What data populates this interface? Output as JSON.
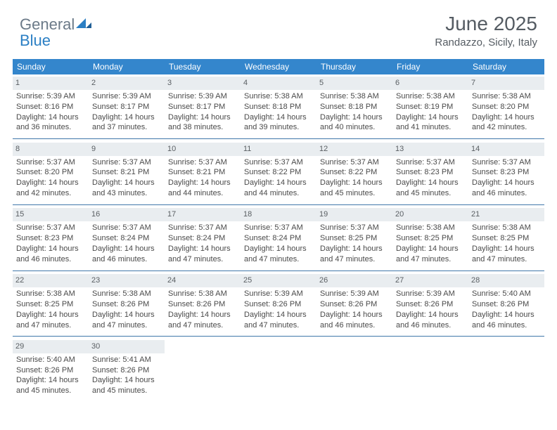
{
  "brand": {
    "part1": "General",
    "part2": "Blue"
  },
  "header": {
    "title": "June 2025",
    "location": "Randazzo, Sicily, Italy"
  },
  "colors": {
    "header_bg": "#3486cc",
    "header_text": "#ffffff",
    "daynum_bg": "#e9edf0",
    "rule": "#3f77aa",
    "text": "#4a4a4a",
    "title": "#555c63",
    "logo_gray": "#6b7a88",
    "logo_blue": "#2b7fc4"
  },
  "weekdays": [
    "Sunday",
    "Monday",
    "Tuesday",
    "Wednesday",
    "Thursday",
    "Friday",
    "Saturday"
  ],
  "days": [
    {
      "n": 1,
      "sr": "5:39 AM",
      "ss": "8:16 PM",
      "dl": "14 hours and 36 minutes."
    },
    {
      "n": 2,
      "sr": "5:39 AM",
      "ss": "8:17 PM",
      "dl": "14 hours and 37 minutes."
    },
    {
      "n": 3,
      "sr": "5:39 AM",
      "ss": "8:17 PM",
      "dl": "14 hours and 38 minutes."
    },
    {
      "n": 4,
      "sr": "5:38 AM",
      "ss": "8:18 PM",
      "dl": "14 hours and 39 minutes."
    },
    {
      "n": 5,
      "sr": "5:38 AM",
      "ss": "8:18 PM",
      "dl": "14 hours and 40 minutes."
    },
    {
      "n": 6,
      "sr": "5:38 AM",
      "ss": "8:19 PM",
      "dl": "14 hours and 41 minutes."
    },
    {
      "n": 7,
      "sr": "5:38 AM",
      "ss": "8:20 PM",
      "dl": "14 hours and 42 minutes."
    },
    {
      "n": 8,
      "sr": "5:37 AM",
      "ss": "8:20 PM",
      "dl": "14 hours and 42 minutes."
    },
    {
      "n": 9,
      "sr": "5:37 AM",
      "ss": "8:21 PM",
      "dl": "14 hours and 43 minutes."
    },
    {
      "n": 10,
      "sr": "5:37 AM",
      "ss": "8:21 PM",
      "dl": "14 hours and 44 minutes."
    },
    {
      "n": 11,
      "sr": "5:37 AM",
      "ss": "8:22 PM",
      "dl": "14 hours and 44 minutes."
    },
    {
      "n": 12,
      "sr": "5:37 AM",
      "ss": "8:22 PM",
      "dl": "14 hours and 45 minutes."
    },
    {
      "n": 13,
      "sr": "5:37 AM",
      "ss": "8:23 PM",
      "dl": "14 hours and 45 minutes."
    },
    {
      "n": 14,
      "sr": "5:37 AM",
      "ss": "8:23 PM",
      "dl": "14 hours and 46 minutes."
    },
    {
      "n": 15,
      "sr": "5:37 AM",
      "ss": "8:23 PM",
      "dl": "14 hours and 46 minutes."
    },
    {
      "n": 16,
      "sr": "5:37 AM",
      "ss": "8:24 PM",
      "dl": "14 hours and 46 minutes."
    },
    {
      "n": 17,
      "sr": "5:37 AM",
      "ss": "8:24 PM",
      "dl": "14 hours and 47 minutes."
    },
    {
      "n": 18,
      "sr": "5:37 AM",
      "ss": "8:24 PM",
      "dl": "14 hours and 47 minutes."
    },
    {
      "n": 19,
      "sr": "5:37 AM",
      "ss": "8:25 PM",
      "dl": "14 hours and 47 minutes."
    },
    {
      "n": 20,
      "sr": "5:38 AM",
      "ss": "8:25 PM",
      "dl": "14 hours and 47 minutes."
    },
    {
      "n": 21,
      "sr": "5:38 AM",
      "ss": "8:25 PM",
      "dl": "14 hours and 47 minutes."
    },
    {
      "n": 22,
      "sr": "5:38 AM",
      "ss": "8:25 PM",
      "dl": "14 hours and 47 minutes."
    },
    {
      "n": 23,
      "sr": "5:38 AM",
      "ss": "8:26 PM",
      "dl": "14 hours and 47 minutes."
    },
    {
      "n": 24,
      "sr": "5:38 AM",
      "ss": "8:26 PM",
      "dl": "14 hours and 47 minutes."
    },
    {
      "n": 25,
      "sr": "5:39 AM",
      "ss": "8:26 PM",
      "dl": "14 hours and 47 minutes."
    },
    {
      "n": 26,
      "sr": "5:39 AM",
      "ss": "8:26 PM",
      "dl": "14 hours and 46 minutes."
    },
    {
      "n": 27,
      "sr": "5:39 AM",
      "ss": "8:26 PM",
      "dl": "14 hours and 46 minutes."
    },
    {
      "n": 28,
      "sr": "5:40 AM",
      "ss": "8:26 PM",
      "dl": "14 hours and 46 minutes."
    },
    {
      "n": 29,
      "sr": "5:40 AM",
      "ss": "8:26 PM",
      "dl": "14 hours and 45 minutes."
    },
    {
      "n": 30,
      "sr": "5:41 AM",
      "ss": "8:26 PM",
      "dl": "14 hours and 45 minutes."
    }
  ],
  "labels": {
    "sunrise": "Sunrise:",
    "sunset": "Sunset:",
    "daylight": "Daylight:"
  },
  "layout": {
    "first_weekday_index": 0,
    "rows": 5,
    "cols": 7
  }
}
